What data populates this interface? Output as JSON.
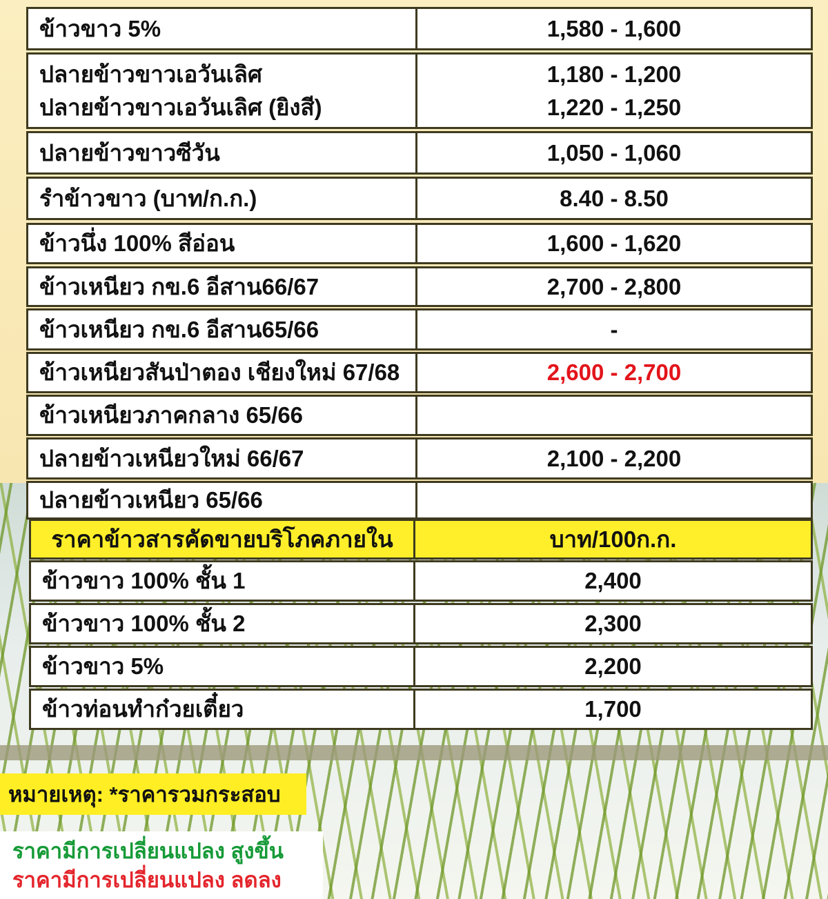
{
  "export_rows": [
    {
      "name": [
        "ข้าวขาว 5%"
      ],
      "price": [
        "1,580 - 1,600"
      ]
    },
    {
      "name": [
        "ปลายข้าวขาวเอวันเลิศ",
        "ปลายข้าวขาวเอวันเลิศ (ยิงสี)"
      ],
      "price": [
        "1,180 - 1,200",
        "1,220 - 1,250"
      ]
    },
    {
      "name": [
        "ปลายข้าวขาวซีวัน"
      ],
      "price": [
        "1,050 - 1,060"
      ]
    },
    {
      "name": [
        "รำข้าวขาว (บาท/ก.ก.)"
      ],
      "price": [
        "8.40 - 8.50"
      ]
    },
    {
      "name": [
        "ข้าวนึ่ง 100% สีอ่อน"
      ],
      "price": [
        "1,600 - 1,620"
      ]
    },
    {
      "name": [
        "ข้าวเหนียว กข.6 อีสาน66/67"
      ],
      "price": [
        "2,700 - 2,800"
      ]
    },
    {
      "name": [
        "ข้าวเหนียว กข.6 อีสาน65/66"
      ],
      "price": [
        "-"
      ]
    },
    {
      "name": [
        "ข้าวเหนียวสันป่าตอง เชียงใหม่ 67/68"
      ],
      "price": [
        "2,600 - 2,700"
      ],
      "change": "down"
    },
    {
      "name": [
        "ข้าวเหนียวภาคกลาง 65/66"
      ],
      "price": [
        ""
      ]
    },
    {
      "name": [
        "ปลายข้าวเหนียวใหม่ 66/67"
      ],
      "price": [
        "2,100 - 2,200"
      ]
    },
    {
      "name": [
        "ปลายข้าวเหนียว 65/66"
      ],
      "price": [
        ""
      ]
    }
  ],
  "domestic_header": {
    "name": "ราคาข้าวสารคัดขายบริโภคภายใน",
    "unit": "บาท/100ก.ก."
  },
  "domestic_rows": [
    {
      "name": "ข้าวขาว 100% ชั้น 1",
      "price": "2,400"
    },
    {
      "name": "ข้าวขาว 100% ชั้น 2",
      "price": "2,300"
    },
    {
      "name": "ข้าวขาว 5%",
      "price": "2,200"
    },
    {
      "name": "ข้าวท่อนทำก๋วยเตี๋ยว",
      "price": "1,700"
    }
  ],
  "note": "หมายเหตุ: *ราคารวมกระสอบ",
  "legend": {
    "up": "ราคามีการเปลี่ยนแปลง สูงขึ้น",
    "down": "ราคามีการเปลี่ยนแปลง ลดลง"
  },
  "colors": {
    "header_bg": "#ffef2a",
    "up": "#159a37",
    "down": "#e3141b",
    "border": "#3e3a1f"
  }
}
